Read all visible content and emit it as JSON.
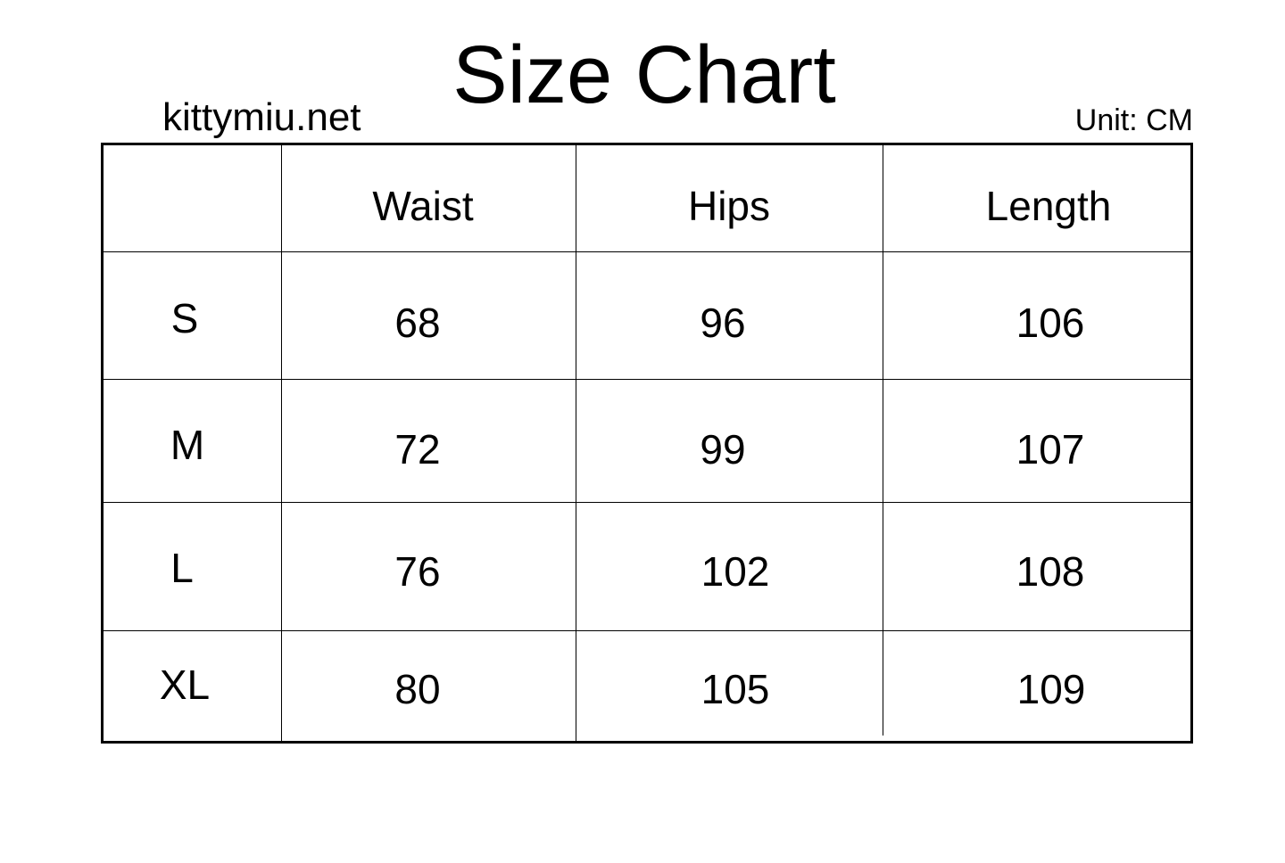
{
  "title": "Size Chart",
  "site": "kittymiu.net",
  "unit": "Unit: CM",
  "table": {
    "headers": [
      "",
      "Waist",
      "Hips",
      "Length"
    ],
    "rows": [
      {
        "size": "S",
        "waist": "68",
        "hips": "96",
        "length": "106"
      },
      {
        "size": "M",
        "waist": "72",
        "hips": "99",
        "length": "107"
      },
      {
        "size": "L",
        "waist": "76",
        "hips": "102",
        "length": "108"
      },
      {
        "size": "XL",
        "waist": "80",
        "hips": "105",
        "length": "109"
      }
    ]
  }
}
